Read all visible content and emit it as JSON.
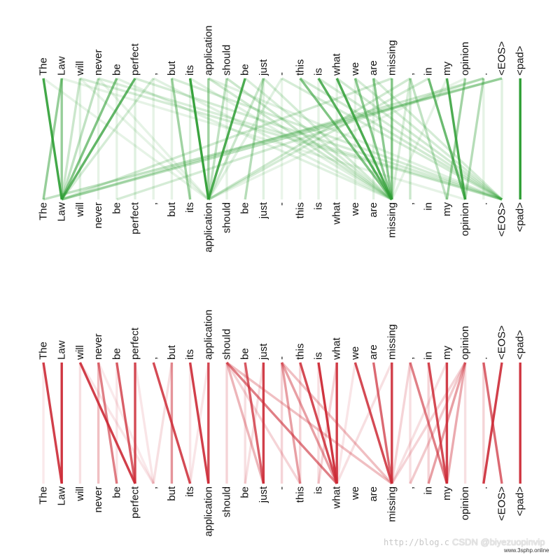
{
  "tokens": [
    "The",
    "Law",
    "will",
    "never",
    "be",
    "perfect",
    ",",
    "but",
    "its",
    "application",
    "should",
    "be",
    "just",
    "-",
    "this",
    "is",
    "what",
    "we",
    "are",
    "missing",
    ",",
    "in",
    "my",
    "opinion",
    ".",
    "<EOS>",
    "<pad>"
  ],
  "colors": {
    "green": "#2e9e34",
    "red": "#cc2a36"
  },
  "panels": [
    {
      "id": "green",
      "color_key": "green",
      "edges": [
        [
          0,
          1,
          0.9
        ],
        [
          1,
          0,
          0.5
        ],
        [
          1,
          1,
          0.5
        ],
        [
          2,
          1,
          0.25
        ],
        [
          3,
          1,
          0.3
        ],
        [
          4,
          1,
          0.6
        ],
        [
          5,
          1,
          0.75
        ],
        [
          6,
          1,
          0.2
        ],
        [
          7,
          8,
          0.45
        ],
        [
          8,
          9,
          0.95
        ],
        [
          9,
          9,
          0.45
        ],
        [
          10,
          9,
          0.3
        ],
        [
          11,
          9,
          0.85
        ],
        [
          12,
          11,
          0.35
        ],
        [
          12,
          9,
          0.25
        ],
        [
          13,
          9,
          0.15
        ],
        [
          14,
          19,
          0.6
        ],
        [
          15,
          19,
          0.8
        ],
        [
          16,
          19,
          0.85
        ],
        [
          17,
          19,
          0.55
        ],
        [
          18,
          19,
          0.55
        ],
        [
          19,
          19,
          0.6
        ],
        [
          21,
          23,
          0.7
        ],
        [
          22,
          23,
          0.85
        ],
        [
          23,
          22,
          0.45
        ],
        [
          24,
          23,
          0.35
        ],
        [
          25,
          25,
          0.15
        ],
        [
          26,
          26,
          1.0
        ],
        [
          25,
          0,
          0.3
        ],
        [
          25,
          1,
          0.3
        ],
        [
          24,
          1,
          0.25
        ],
        [
          24,
          4,
          0.2
        ],
        [
          20,
          9,
          0.22
        ],
        [
          19,
          1,
          0.22
        ],
        [
          21,
          9,
          0.2
        ],
        [
          2,
          25,
          0.2
        ],
        [
          3,
          25,
          0.18
        ],
        [
          5,
          25,
          0.2
        ],
        [
          7,
          25,
          0.2
        ],
        [
          9,
          19,
          0.22
        ],
        [
          10,
          19,
          0.25
        ],
        [
          12,
          19,
          0.2
        ],
        [
          13,
          25,
          0.2
        ],
        [
          14,
          25,
          0.22
        ],
        [
          15,
          25,
          0.2
        ],
        [
          16,
          25,
          0.22
        ],
        [
          17,
          25,
          0.2
        ],
        [
          18,
          25,
          0.2
        ],
        [
          6,
          19,
          0.15
        ],
        [
          8,
          19,
          0.15
        ],
        [
          4,
          19,
          0.15
        ],
        [
          11,
          19,
          0.18
        ],
        [
          20,
          19,
          0.18
        ],
        [
          20,
          22,
          0.3
        ],
        [
          20,
          20,
          0.25
        ],
        [
          18,
          18,
          0.15
        ],
        [
          17,
          17,
          0.12
        ],
        [
          16,
          16,
          0.12
        ],
        [
          15,
          15,
          0.12
        ],
        [
          14,
          14,
          0.12
        ],
        [
          13,
          13,
          0.1
        ],
        [
          12,
          12,
          0.15
        ],
        [
          10,
          10,
          0.12
        ],
        [
          9,
          25,
          0.15
        ],
        [
          3,
          3,
          0.12
        ],
        [
          2,
          2,
          0.15
        ],
        [
          4,
          4,
          0.12
        ],
        [
          5,
          5,
          0.15
        ],
        [
          6,
          6,
          0.12
        ],
        [
          7,
          7,
          0.12
        ],
        [
          8,
          8,
          0.15
        ],
        [
          1,
          23,
          0.12
        ],
        [
          0,
          9,
          0.12
        ],
        [
          23,
          9,
          0.12
        ],
        [
          22,
          19,
          0.12
        ],
        [
          24,
          24,
          0.12
        ],
        [
          2,
          9,
          0.12
        ],
        [
          3,
          9,
          0.12
        ]
      ]
    },
    {
      "id": "red",
      "color_key": "red",
      "edges": [
        [
          0,
          1,
          0.9
        ],
        [
          1,
          1,
          0.95
        ],
        [
          2,
          5,
          0.9
        ],
        [
          3,
          4,
          0.6
        ],
        [
          3,
          3,
          0.3
        ],
        [
          4,
          5,
          0.75
        ],
        [
          5,
          5,
          0.85
        ],
        [
          6,
          8,
          0.85
        ],
        [
          7,
          7,
          0.5
        ],
        [
          8,
          9,
          0.9
        ],
        [
          9,
          9,
          0.85
        ],
        [
          10,
          16,
          0.6
        ],
        [
          10,
          12,
          0.35
        ],
        [
          11,
          12,
          0.75
        ],
        [
          12,
          12,
          0.9
        ],
        [
          13,
          16,
          0.45
        ],
        [
          13,
          14,
          0.45
        ],
        [
          14,
          16,
          0.85
        ],
        [
          15,
          16,
          0.95
        ],
        [
          16,
          16,
          0.9
        ],
        [
          17,
          19,
          0.85
        ],
        [
          18,
          19,
          0.7
        ],
        [
          19,
          19,
          0.9
        ],
        [
          20,
          22,
          0.6
        ],
        [
          21,
          22,
          0.85
        ],
        [
          22,
          22,
          0.9
        ],
        [
          23,
          21,
          0.45
        ],
        [
          23,
          22,
          0.4
        ],
        [
          24,
          25,
          0.7
        ],
        [
          25,
          24,
          0.9
        ],
        [
          26,
          26,
          0.95
        ],
        [
          2,
          2,
          0.15
        ],
        [
          2,
          6,
          0.12
        ],
        [
          3,
          6,
          0.1
        ],
        [
          4,
          4,
          0.12
        ],
        [
          0,
          0,
          0.1
        ],
        [
          7,
          6,
          0.15
        ],
        [
          10,
          10,
          0.2
        ],
        [
          10,
          19,
          0.3
        ],
        [
          10,
          14,
          0.2
        ],
        [
          11,
          11,
          0.15
        ],
        [
          13,
          19,
          0.3
        ],
        [
          13,
          13,
          0.2
        ],
        [
          14,
          14,
          0.2
        ],
        [
          15,
          15,
          0.15
        ],
        [
          16,
          15,
          0.2
        ],
        [
          17,
          16,
          0.12
        ],
        [
          20,
          20,
          0.15
        ],
        [
          20,
          19,
          0.2
        ],
        [
          21,
          21,
          0.2
        ],
        [
          23,
          19,
          0.2
        ],
        [
          23,
          23,
          0.15
        ],
        [
          23,
          20,
          0.25
        ],
        [
          24,
          24,
          0.2
        ],
        [
          19,
          16,
          0.15
        ],
        [
          22,
          19,
          0.15
        ],
        [
          12,
          11,
          0.15
        ],
        [
          9,
          8,
          0.12
        ],
        [
          5,
          6,
          0.12
        ],
        [
          8,
          8,
          0.12
        ]
      ]
    }
  ],
  "watermark": {
    "blog": "http://blog.c",
    "csdn": "CSDN @biyezuopinvip",
    "site": "www.3sphp.online"
  }
}
